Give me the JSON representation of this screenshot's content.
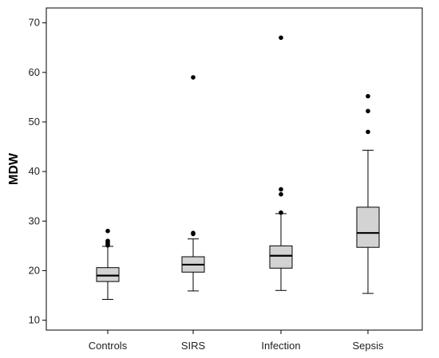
{
  "chart_data": {
    "type": "boxplot",
    "title": "",
    "xlabel": "",
    "ylabel": "MDW",
    "ylim": [
      8,
      73
    ],
    "yticks": [
      10,
      20,
      30,
      40,
      50,
      60,
      70
    ],
    "grid": false,
    "legend": "none",
    "box_fill": "#d3d3d3",
    "categories": [
      "Controls",
      "SIRS",
      "Infection",
      "Sepsis"
    ],
    "boxes": [
      {
        "category": "Controls",
        "whisker_low": 14.2,
        "q1": 17.8,
        "median": 19.0,
        "q3": 20.6,
        "whisker_high": 24.9,
        "outliers": [
          25.1,
          25.4,
          25.7,
          26.0,
          28.0
        ]
      },
      {
        "category": "SIRS",
        "whisker_low": 15.9,
        "q1": 19.7,
        "median": 21.2,
        "q3": 22.8,
        "whisker_high": 26.4,
        "outliers": [
          27.4,
          27.6,
          59.0
        ]
      },
      {
        "category": "Infection",
        "whisker_low": 16.0,
        "q1": 20.5,
        "median": 23.0,
        "q3": 25.0,
        "whisker_high": 31.5,
        "outliers": [
          31.7,
          35.4,
          36.4,
          67.0
        ]
      },
      {
        "category": "Sepsis",
        "whisker_low": 15.4,
        "q1": 24.7,
        "median": 27.6,
        "q3": 32.8,
        "whisker_high": 44.3,
        "outliers": [
          48.0,
          52.2,
          55.2
        ]
      }
    ]
  }
}
